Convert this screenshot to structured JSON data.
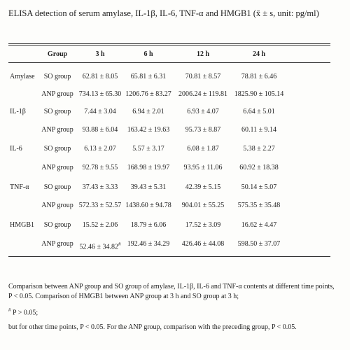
{
  "title": "ELISA detection of serum amylase, IL-1β, IL-6, TNF-α and HMGB1 (x̄ ± s, unit: pg/ml)",
  "table": {
    "header": [
      "Group",
      "3 h",
      "6 h",
      "12 h",
      "24 h"
    ],
    "groups": [
      {
        "name": "Amylase",
        "rows": [
          {
            "group": "SO group",
            "values": [
              "62.81 ± 8.05",
              "65.81 ± 6.31",
              "70.81 ± 8.57",
              "78.81 ± 6.46"
            ]
          },
          {
            "group": "ANP group",
            "values": [
              "734.13 ± 65.30",
              "1206.76 ± 83.27",
              "2006.24 ± 119.81",
              "1825.90 ± 105.14"
            ]
          }
        ]
      },
      {
        "name": "IL-1β",
        "rows": [
          {
            "group": "SO group",
            "values": [
              "7.44 ± 3.04",
              "6.94 ± 2.01",
              "6.93 ± 4.07",
              "6.64 ± 5.01"
            ]
          },
          {
            "group": "ANP group",
            "values": [
              "93.88 ± 6.04",
              "163.42 ± 19.63",
              "95.73 ± 8.87",
              "60.11 ± 9.14"
            ]
          }
        ]
      },
      {
        "name": "IL-6",
        "rows": [
          {
            "group": "SO group",
            "values": [
              "6.13 ± 2.07",
              "5.57 ± 3.17",
              "6.08 ± 1.87",
              "5.38 ± 2.27"
            ]
          },
          {
            "group": "ANP group",
            "values": [
              "92.78 ± 9.55",
              "168.98 ± 19.97",
              "93.95 ± 11.06",
              "60.92 ± 18.38"
            ]
          }
        ]
      },
      {
        "name": "TNF-α",
        "rows": [
          {
            "group": "SO group",
            "values": [
              "37.43 ± 3.33",
              "39.43 ± 5.31",
              "42.39 ± 5.15",
              "50.14 ± 5.07"
            ]
          },
          {
            "group": "ANP group",
            "values": [
              "572.33 ± 52.57",
              "1438.60 ± 94.78",
              "904.01 ± 55.25",
              "575.35 ± 35.48"
            ]
          }
        ]
      },
      {
        "name": "HMGB1",
        "rows": [
          {
            "group": "SO group",
            "values": [
              "15.52 ± 2.06",
              "18.79 ± 6.06",
              "17.52 ± 3.09",
              "16.62 ± 4.47"
            ]
          },
          {
            "group": "ANP group",
            "values": [
              "52.46 ± 34.82",
              "192.46 ± 34.29",
              "426.46 ± 44.08",
              "598.50 ± 37.07"
            ],
            "note": "#"
          }
        ]
      }
    ]
  },
  "notes": [
    "Comparison between ANP group and SO group of amylase, IL-1β, IL-6 and TNF-α contents at different time points, P < 0.05. Comparison of HMGB1 between ANP group at 3 h and SO group at 3 h;",
    {
      "mark": "#",
      "text": " P > 0.05;"
    },
    "but for other time points, P < 0.05. For the ANP group, comparison with the preceding group, P < 0.05."
  ]
}
